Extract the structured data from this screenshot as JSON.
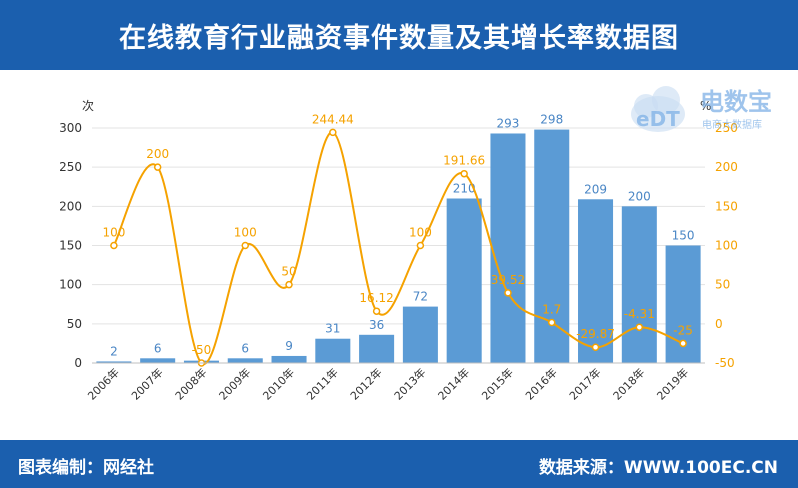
{
  "header": {
    "title": "在线教育行业融资事件数量及其增长率数据图"
  },
  "footer": {
    "editor": "图表编制：网经社",
    "source": "数据来源：WWW.100EC.CN"
  },
  "logo": {
    "mark": "eDT",
    "name": "电数宝",
    "tagline": "电商大数据库"
  },
  "colors": {
    "bar": "#5b9bd5",
    "line": "#f5a200",
    "header": "#1b5fae"
  },
  "chart_data": {
    "type": "bar+line",
    "categories": [
      "2006年",
      "2007年",
      "2008年",
      "2009年",
      "2010年",
      "2011年",
      "2012年",
      "2013年",
      "2014年",
      "2015年",
      "2016年",
      "2017年",
      "2018年",
      "2019年"
    ],
    "series": [
      {
        "type": "bar",
        "axis": "left",
        "values": [
          2,
          6,
          3,
          6,
          9,
          31,
          36,
          72,
          210,
          293,
          298,
          209,
          200,
          150
        ]
      },
      {
        "type": "line",
        "axis": "right",
        "values": [
          100,
          200,
          -50,
          100,
          50,
          244.44,
          16.12,
          100,
          191.66,
          39.52,
          1.7,
          -29.87,
          -4.31,
          -25
        ]
      }
    ],
    "bar_labels": [
      "2",
      "6",
      "",
      "6",
      "9",
      "31",
      "36",
      "72",
      "210",
      "293",
      "298",
      "209",
      "200",
      "150"
    ],
    "line_labels": [
      "100",
      "200",
      "-50",
      "100",
      "50",
      "244.44",
      "16.12",
      "100",
      "191.66",
      "39.52",
      "1.7",
      "-29.87",
      "-4.31",
      "-25"
    ],
    "left_axis": {
      "unit": "次",
      "ylim": [
        0,
        300
      ],
      "ticks": [
        "0",
        "50",
        "100",
        "150",
        "200",
        "250",
        "300"
      ]
    },
    "right_axis": {
      "unit": "%",
      "ylim": [
        -50,
        250
      ],
      "ticks": [
        "-50",
        "0",
        "50",
        "100",
        "150",
        "200",
        "250"
      ]
    },
    "grid": true
  }
}
